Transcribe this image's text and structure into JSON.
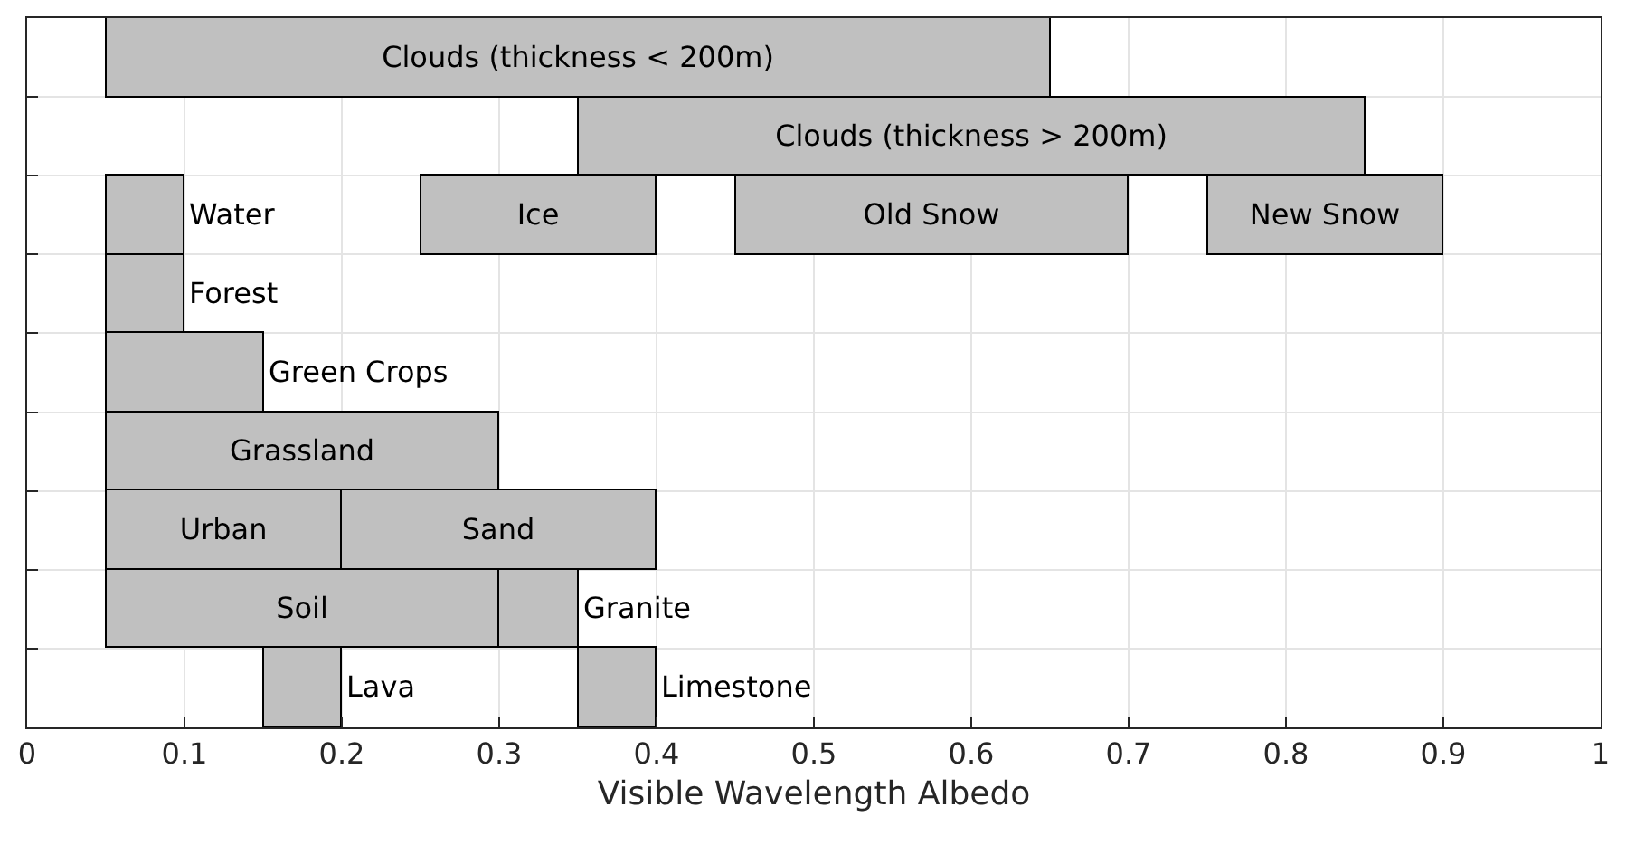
{
  "chart_data": {
    "type": "bar",
    "orientation": "horizontal",
    "xlabel": "Visible Wavelength Albedo",
    "categories": [
      null,
      null,
      null,
      null,
      null,
      null,
      null,
      null,
      null
    ],
    "series": [
      {
        "name": "Clouds (thickness < 200m)",
        "color": "#c0c0c0",
        "base": [
          0.05,
          null,
          null,
          null,
          null,
          null,
          null,
          null,
          null
        ],
        "values": [
          0.6,
          null,
          null,
          null,
          null,
          null,
          null,
          null,
          null
        ]
      },
      {
        "name": "Clouds (thickness > 200m)",
        "color": "#c0c0c0",
        "base": [
          null,
          0.35,
          null,
          null,
          null,
          null,
          null,
          null,
          null
        ],
        "values": [
          null,
          0.5,
          null,
          null,
          null,
          null,
          null,
          null,
          null
        ]
      },
      {
        "name": "Water",
        "color": "#c0c0c0",
        "base": [
          null,
          null,
          0.05,
          null,
          null,
          null,
          null,
          null,
          null
        ],
        "values": [
          null,
          null,
          0.05,
          null,
          null,
          null,
          null,
          null,
          null
        ]
      },
      {
        "name": "Ice",
        "color": "#c0c0c0",
        "base": [
          null,
          null,
          0.25,
          null,
          null,
          null,
          null,
          null,
          null
        ],
        "values": [
          null,
          null,
          0.15,
          null,
          null,
          null,
          null,
          null,
          null
        ]
      },
      {
        "name": "Old Snow",
        "color": "#c0c0c0",
        "base": [
          null,
          null,
          0.45,
          null,
          null,
          null,
          null,
          null,
          null
        ],
        "values": [
          null,
          null,
          0.25,
          null,
          null,
          null,
          null,
          null,
          null
        ]
      },
      {
        "name": "New Snow",
        "color": "#c0c0c0",
        "base": [
          null,
          null,
          0.75,
          null,
          null,
          null,
          null,
          null,
          null
        ],
        "values": [
          null,
          null,
          0.15,
          null,
          null,
          null,
          null,
          null,
          null
        ]
      },
      {
        "name": "Forest",
        "color": "#c0c0c0",
        "base": [
          null,
          null,
          null,
          0.05,
          null,
          null,
          null,
          null,
          null
        ],
        "values": [
          null,
          null,
          null,
          0.05,
          null,
          null,
          null,
          null,
          null
        ]
      },
      {
        "name": "Green Crops",
        "color": "#c0c0c0",
        "base": [
          null,
          null,
          null,
          null,
          0.05,
          null,
          null,
          null,
          null
        ],
        "values": [
          null,
          null,
          null,
          null,
          0.1,
          null,
          null,
          null,
          null
        ]
      },
      {
        "name": "Grassland",
        "color": "#c0c0c0",
        "base": [
          null,
          null,
          null,
          null,
          null,
          0.05,
          null,
          null,
          null
        ],
        "values": [
          null,
          null,
          null,
          null,
          null,
          0.25,
          null,
          null,
          null
        ]
      },
      {
        "name": "Urban",
        "color": "#c0c0c0",
        "base": [
          null,
          null,
          null,
          null,
          null,
          null,
          0.05,
          null,
          null
        ],
        "values": [
          null,
          null,
          null,
          null,
          null,
          null,
          0.15,
          null,
          null
        ]
      },
      {
        "name": "Sand",
        "color": "#c0c0c0",
        "base": [
          null,
          null,
          null,
          null,
          null,
          null,
          0.2,
          null,
          null
        ],
        "values": [
          null,
          null,
          null,
          null,
          null,
          null,
          0.2,
          null,
          null
        ]
      },
      {
        "name": "Soil",
        "color": "#c0c0c0",
        "base": [
          null,
          null,
          null,
          null,
          null,
          null,
          null,
          0.05,
          null
        ],
        "values": [
          null,
          null,
          null,
          null,
          null,
          null,
          null,
          0.25,
          null
        ]
      },
      {
        "name": "Granite",
        "color": "#c0c0c0",
        "base": [
          null,
          null,
          null,
          null,
          null,
          null,
          null,
          0.3,
          null
        ],
        "values": [
          null,
          null,
          null,
          null,
          null,
          null,
          null,
          0.05,
          null
        ]
      },
      {
        "name": "Lava",
        "color": "#c0c0c0",
        "base": [
          null,
          null,
          null,
          null,
          null,
          null,
          null,
          null,
          0.15
        ],
        "values": [
          null,
          null,
          null,
          null,
          null,
          null,
          null,
          null,
          0.05
        ]
      },
      {
        "name": "Limestone",
        "color": "#c0c0c0",
        "base": [
          null,
          null,
          null,
          null,
          null,
          null,
          null,
          null,
          0.35
        ],
        "values": [
          null,
          null,
          null,
          null,
          null,
          null,
          null,
          null,
          0.05
        ]
      }
    ],
    "xlim": [
      0,
      1
    ],
    "xticks": [
      0,
      0.1,
      0.2,
      0.3,
      0.4,
      0.5,
      0.6,
      0.7,
      0.8,
      0.9,
      1
    ],
    "grid": true,
    "tick_labels": "x"
  }
}
